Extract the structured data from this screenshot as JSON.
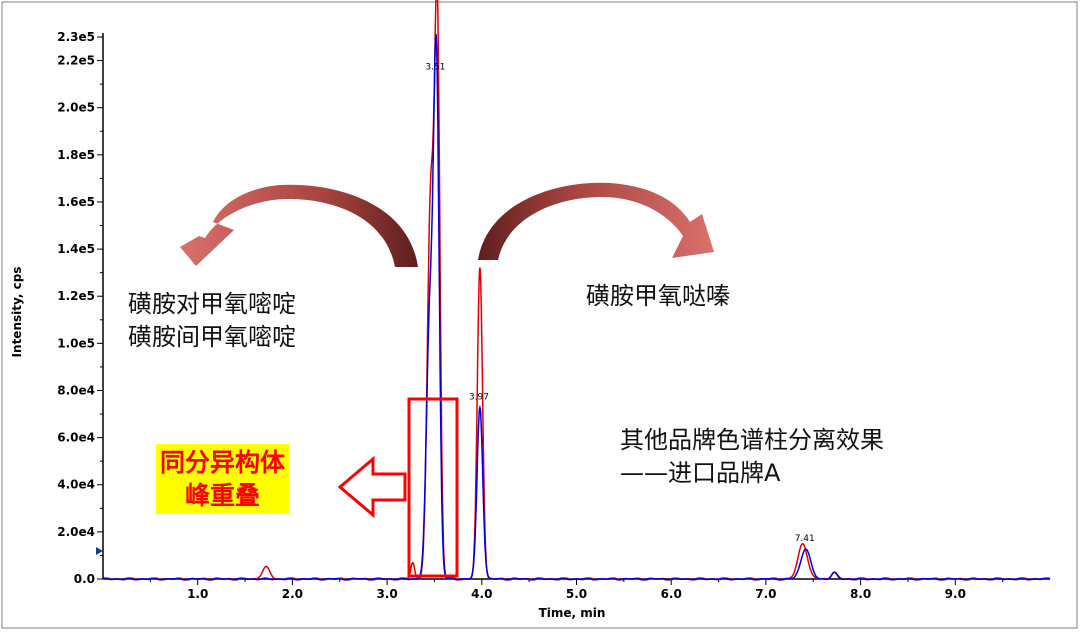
{
  "chart_data": {
    "type": "line",
    "xlabel": "Time, min",
    "ylabel": "Intensity, cps",
    "xlim": [
      0,
      10.0
    ],
    "ylim": [
      0,
      230000
    ],
    "x_ticks": [
      1.0,
      2.0,
      3.0,
      4.0,
      5.0,
      6.0,
      7.0,
      8.0,
      9.0
    ],
    "x_tick_labels": [
      "1.0",
      "2.0",
      "3.0",
      "4.0",
      "5.0",
      "6.0",
      "7.0",
      "8.0",
      "9.0"
    ],
    "y_ticks": [
      0,
      20000,
      40000,
      60000,
      80000,
      100000,
      120000,
      140000,
      160000,
      180000,
      200000,
      220000,
      230000
    ],
    "y_tick_labels": [
      "0.0",
      "2.0e4",
      "4.0e4",
      "6.0e4",
      "8.0e4",
      "1.0e5",
      "1.2e5",
      "1.4e5",
      "1.6e5",
      "1.8e5",
      "2.0e5",
      "2.2e5",
      "2.3e5"
    ],
    "grid": false,
    "series_colors": [
      "#e00000",
      "#0000e0"
    ],
    "series": [
      {
        "peaks": [
          {
            "rt": 1.72,
            "height": 5000,
            "width": 0.04
          },
          {
            "rt": 3.27,
            "height": 7000,
            "width": 0.02
          },
          {
            "rt": 3.46,
            "height": 160000,
            "width": 0.035
          },
          {
            "rt": 3.53,
            "height": 230000,
            "width": 0.028
          },
          {
            "rt": 3.98,
            "height": 132000,
            "width": 0.028
          },
          {
            "rt": 7.39,
            "height": 15000,
            "width": 0.05
          },
          {
            "rt": 7.72,
            "height": 3000,
            "width": 0.03
          }
        ]
      },
      {
        "peaks": [
          {
            "rt": 3.45,
            "height": 108000,
            "width": 0.035
          },
          {
            "rt": 3.52,
            "height": 215000,
            "width": 0.03
          },
          {
            "rt": 3.98,
            "height": 73000,
            "width": 0.03
          },
          {
            "rt": 7.42,
            "height": 13000,
            "width": 0.05
          },
          {
            "rt": 7.72,
            "height": 2500,
            "width": 0.03
          }
        ]
      }
    ],
    "peak_labels": [
      {
        "text": "3.51",
        "x": 3.51,
        "y": 214000
      },
      {
        "text": "3.97",
        "x": 3.97,
        "y": 74000
      },
      {
        "text": "7.41",
        "x": 7.41,
        "y": 14000
      }
    ]
  },
  "annotations": {
    "left_line1": "磺胺对甲氧嘧啶",
    "left_line2": "磺胺间甲氧嘧啶",
    "right": "磺胺甲氧哒嗪",
    "brand_line1": "其他品牌色谱柱分离效果",
    "brand_line2": "——进口品牌A",
    "overlap_line1": "同分异构体",
    "overlap_line2": "峰重叠"
  },
  "colors": {
    "arrow": "#b84a48",
    "highlight_box": "#ff0000",
    "highlight_bg": "#ffff00"
  }
}
